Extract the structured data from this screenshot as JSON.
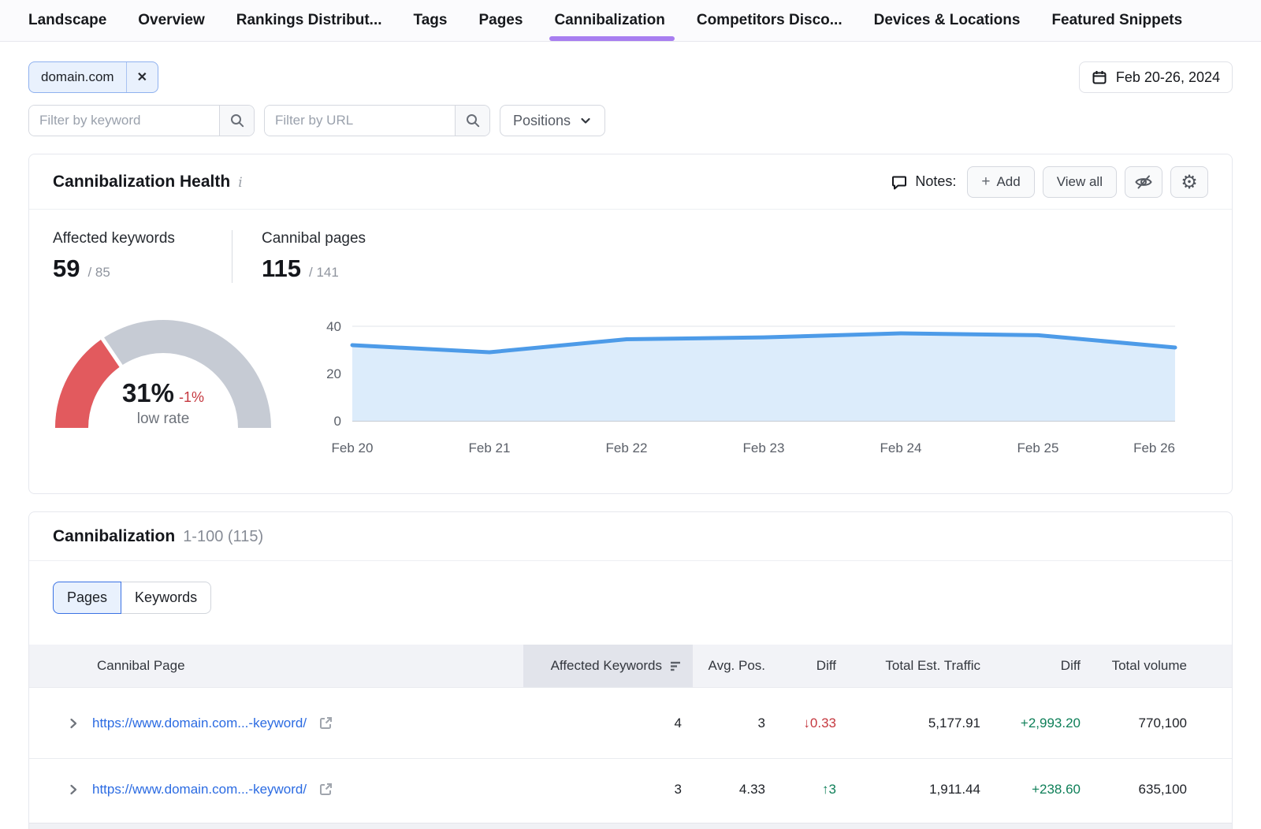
{
  "colors": {
    "accent": "#a87ef0",
    "link": "#2b6be2",
    "positive": "#0e7f58",
    "negative": "#c5383f",
    "gauge_fill": "#e25a5e",
    "gauge_track": "#c6cbd4",
    "chart_line": "#4d9be8",
    "chart_fill": "#dcecfb"
  },
  "nav": {
    "tabs": [
      {
        "label": "Landscape",
        "active": false
      },
      {
        "label": "Overview",
        "active": false
      },
      {
        "label": "Rankings Distribut...",
        "active": false
      },
      {
        "label": "Tags",
        "active": false
      },
      {
        "label": "Pages",
        "active": false
      },
      {
        "label": "Cannibalization",
        "active": true
      },
      {
        "label": "Competitors Disco...",
        "active": false
      },
      {
        "label": "Devices & Locations",
        "active": false
      },
      {
        "label": "Featured Snippets",
        "active": false
      }
    ]
  },
  "toolbar": {
    "domain_chip": "domain.com",
    "date_range": "Feb 20-26, 2024",
    "keyword_placeholder": "Filter by keyword",
    "url_placeholder": "Filter by URL",
    "positions_label": "Positions"
  },
  "health": {
    "title": "Cannibalization Health",
    "notes_label": "Notes:",
    "add_label": "Add",
    "view_all_label": "View all",
    "stats": [
      {
        "label": "Affected keywords",
        "value": "59",
        "total": "/ 85"
      },
      {
        "label": "Cannibal pages",
        "value": "115",
        "total": "/ 141"
      }
    ],
    "gauge": {
      "percent": 31,
      "percent_label": "31%",
      "diff_label": "-1%",
      "caption": "low rate"
    }
  },
  "chart_data": {
    "type": "area",
    "title": "Cannibal pages trend, Feb 20-26 2024",
    "x": [
      "Feb 20",
      "Feb 21",
      "Feb 22",
      "Feb 23",
      "Feb 24",
      "Feb 25",
      "Feb 26"
    ],
    "values": [
      32,
      29,
      34.5,
      35.3,
      37,
      36.2,
      31
    ],
    "ylim": [
      0,
      40
    ],
    "yticks": [
      0,
      20,
      40
    ],
    "grid": true,
    "legend": "none"
  },
  "table_section": {
    "title": "Cannibalization",
    "range_label": "1-100 (115)",
    "tabs": [
      {
        "label": "Pages",
        "active": true
      },
      {
        "label": "Keywords",
        "active": false
      }
    ],
    "columns": [
      "Cannibal Page",
      "Affected Keywords",
      "Avg. Pos.",
      "Diff",
      "Total Est. Traffic",
      "Diff",
      "Total volume"
    ],
    "rows": [
      {
        "url": "https://www.domain.com...-keyword/",
        "affected_keywords": "4",
        "avg_pos": "3",
        "pos_diff": {
          "arrow": "↓",
          "value": "0.33",
          "direction": "negative"
        },
        "est_traffic": "5,177.91",
        "traffic_diff": "+2,993.20",
        "total_volume": "770,100"
      },
      {
        "url": "https://www.domain.com...-keyword/",
        "affected_keywords": "3",
        "avg_pos": "4.33",
        "pos_diff": {
          "arrow": "↑",
          "value": "3",
          "direction": "positive"
        },
        "est_traffic": "1,911.44",
        "traffic_diff": "+238.60",
        "total_volume": "635,100"
      }
    ]
  },
  "icons": {
    "close_glyph": "✕",
    "plus_glyph": "+",
    "gear_glyph": "⚙",
    "info_glyph": "i"
  }
}
